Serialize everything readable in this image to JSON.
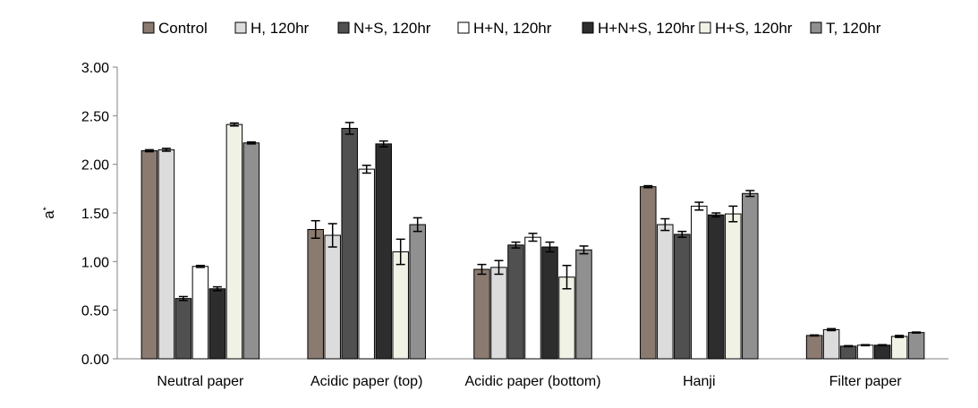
{
  "chart_data": {
    "type": "bar",
    "title": "",
    "xlabel": "",
    "ylabel": "a*",
    "ylim": [
      0,
      3
    ],
    "yticks": [
      "0.00",
      "0.50",
      "1.00",
      "1.50",
      "2.00",
      "2.50",
      "3.00"
    ],
    "grid": false,
    "legend_position": "top",
    "categories": [
      "Neutral paper",
      "Acidic paper (top)",
      "Acidic paper (bottom)",
      "Hanji",
      "Filter paper"
    ],
    "series": [
      {
        "name": "Control",
        "color": "#8a7a70",
        "values": [
          2.14,
          1.33,
          0.92,
          1.77,
          0.24
        ],
        "errors": [
          0.01,
          0.09,
          0.05,
          0.01,
          0.005
        ]
      },
      {
        "name": "H, 120hr",
        "color": "#dcdcdc",
        "values": [
          2.15,
          1.27,
          0.94,
          1.38,
          0.3
        ],
        "errors": [
          0.015,
          0.12,
          0.07,
          0.06,
          0.01
        ]
      },
      {
        "name": "N+S, 120hr",
        "color": "#505050",
        "values": [
          0.62,
          2.37,
          1.17,
          1.28,
          0.13
        ],
        "errors": [
          0.02,
          0.06,
          0.03,
          0.03,
          0.005
        ]
      },
      {
        "name": "H+N, 120hr",
        "color": "#ffffff",
        "values": [
          0.95,
          1.95,
          1.25,
          1.57,
          0.14
        ],
        "errors": [
          0.01,
          0.04,
          0.04,
          0.04,
          0.005
        ]
      },
      {
        "name": "H+N+S, 120hr",
        "color": "#2d2d2d",
        "values": [
          0.72,
          2.21,
          1.15,
          1.48,
          0.14
        ],
        "errors": [
          0.02,
          0.03,
          0.05,
          0.02,
          0.005
        ]
      },
      {
        "name": "H+S, 120hr",
        "color": "#f1f2e6",
        "values": [
          2.41,
          1.1,
          0.84,
          1.49,
          0.23
        ],
        "errors": [
          0.015,
          0.13,
          0.12,
          0.08,
          0.01
        ]
      },
      {
        "name": "T, 120hr",
        "color": "#909090",
        "values": [
          2.22,
          1.38,
          1.12,
          1.7,
          0.27
        ],
        "errors": [
          0.01,
          0.07,
          0.04,
          0.03,
          0.005
        ]
      }
    ]
  }
}
